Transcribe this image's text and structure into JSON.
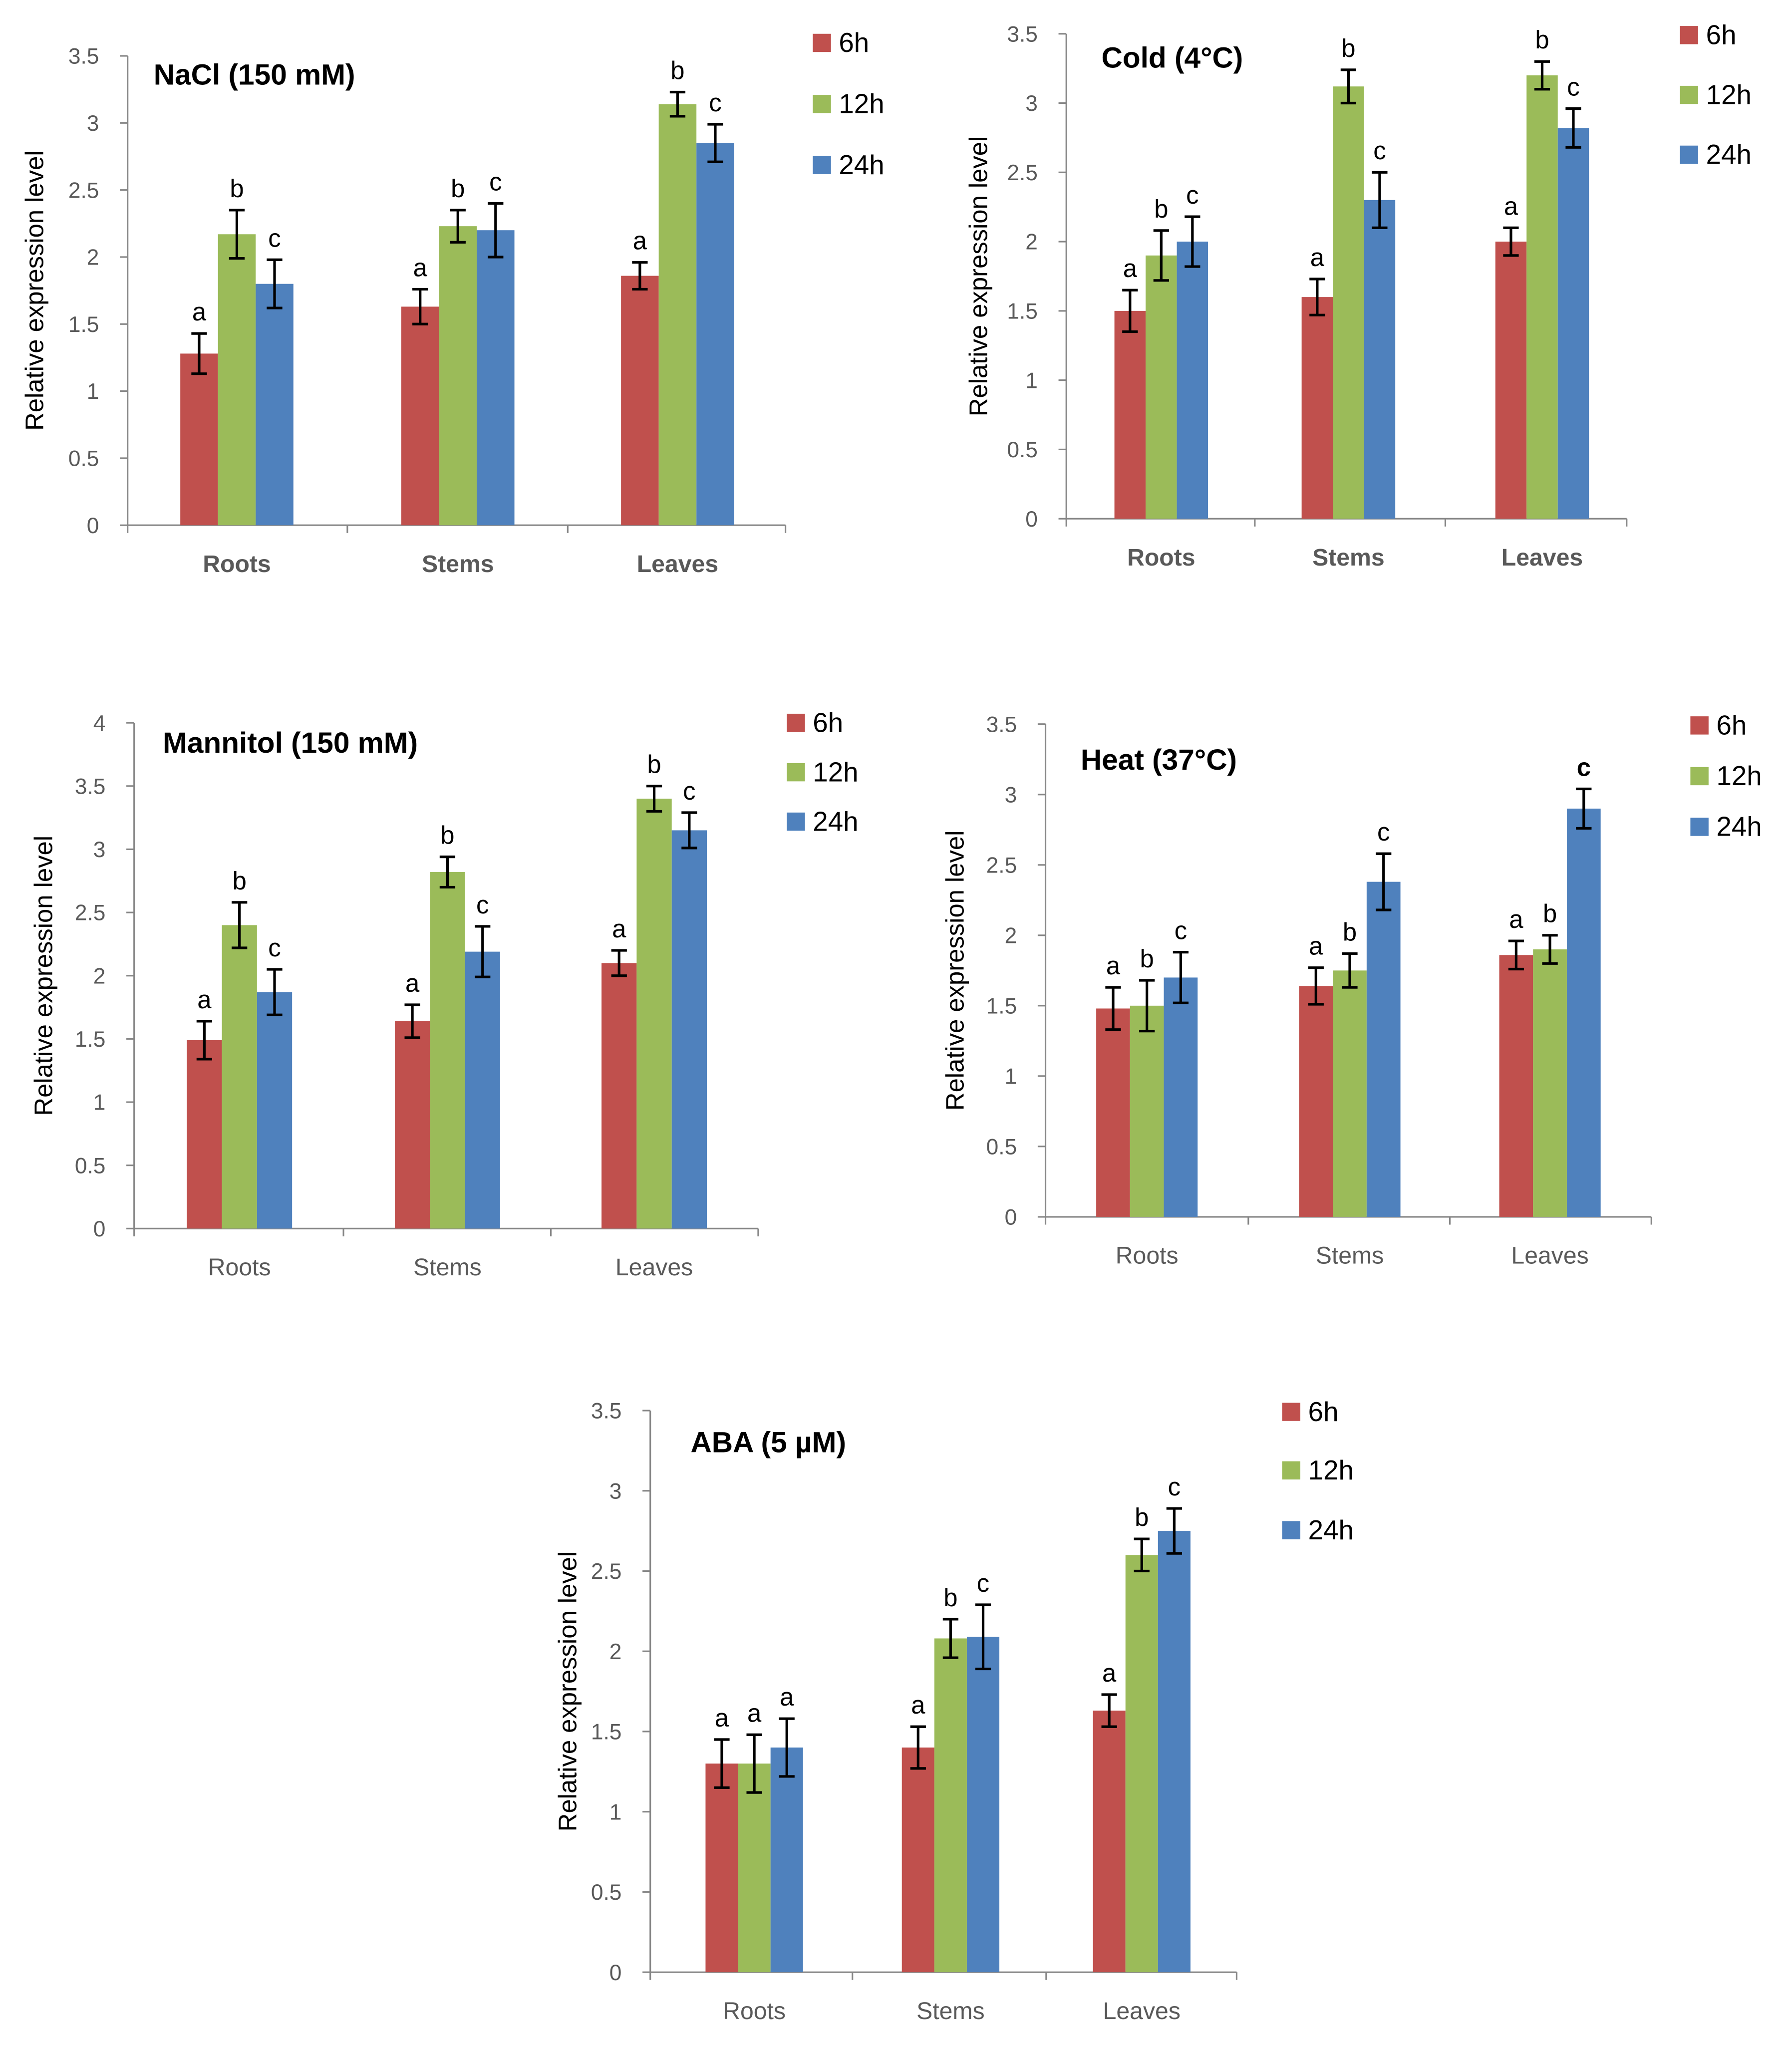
{
  "legend_series": [
    "6h",
    "12h",
    "24h"
  ],
  "series_colors": [
    "#C0504D",
    "#9BBB59",
    "#4F81BD"
  ],
  "chart_data": [
    {
      "type": "bar",
      "title": "NaCl (150 mM)",
      "ylabel": "Relative expression level",
      "xlabel": "",
      "ylim": [
        0,
        3.5
      ],
      "yticks": [
        0,
        0.5,
        1,
        1.5,
        2,
        2.5,
        3,
        3.5
      ],
      "ytick_labels": [
        "0",
        "0.5",
        "1",
        "1.5",
        "2",
        "2.5",
        "3",
        "3.5"
      ],
      "categories": [
        "Roots",
        "Stems",
        "Leaves"
      ],
      "category_bold": true,
      "series": [
        {
          "name": "6h",
          "values": [
            1.28,
            1.63,
            1.86
          ],
          "errors": [
            0.15,
            0.13,
            0.1
          ],
          "labels": [
            "a",
            "a",
            "a"
          ]
        },
        {
          "name": "12h",
          "values": [
            2.17,
            2.23,
            3.14
          ],
          "errors": [
            0.18,
            0.12,
            0.09
          ],
          "labels": [
            "b",
            "b",
            "b"
          ]
        },
        {
          "name": "24h",
          "values": [
            1.8,
            2.2,
            2.85
          ],
          "errors": [
            0.18,
            0.2,
            0.14
          ],
          "labels": [
            "c",
            "c",
            "c"
          ]
        }
      ]
    },
    {
      "type": "bar",
      "title": "Cold (4°C)",
      "ylabel": "Relative expression level",
      "xlabel": "",
      "ylim": [
        0,
        3.5
      ],
      "yticks": [
        0,
        0.5,
        1,
        1.5,
        2,
        2.5,
        3,
        3.5
      ],
      "ytick_labels": [
        "0",
        "0.5",
        "1",
        "1.5",
        "2",
        "2.5",
        "3",
        "3.5"
      ],
      "categories": [
        "Roots",
        "Stems",
        "Leaves"
      ],
      "category_bold": true,
      "series": [
        {
          "name": "6h",
          "values": [
            1.5,
            1.6,
            2.0
          ],
          "errors": [
            0.15,
            0.13,
            0.1
          ],
          "labels": [
            "a",
            "a",
            "a"
          ]
        },
        {
          "name": "12h",
          "values": [
            1.9,
            3.12,
            3.2
          ],
          "errors": [
            0.18,
            0.12,
            0.1
          ],
          "labels": [
            "b",
            "b",
            "b"
          ]
        },
        {
          "name": "24h",
          "values": [
            2.0,
            2.3,
            2.82
          ],
          "errors": [
            0.18,
            0.2,
            0.14
          ],
          "labels": [
            "c",
            "c",
            "c"
          ]
        }
      ]
    },
    {
      "type": "bar",
      "title": "Mannitol (150 mM)",
      "ylabel": "Relative expression level",
      "xlabel": "",
      "ylim": [
        0,
        4
      ],
      "yticks": [
        0,
        0.5,
        1,
        1.5,
        2,
        2.5,
        3,
        3.5,
        4
      ],
      "ytick_labels": [
        "0",
        "0.5",
        "1",
        "1.5",
        "2",
        "2.5",
        "3",
        "3.5",
        "4"
      ],
      "categories": [
        "Roots",
        "Stems",
        "Leaves"
      ],
      "category_bold": false,
      "series": [
        {
          "name": "6h",
          "values": [
            1.49,
            1.64,
            2.1
          ],
          "errors": [
            0.15,
            0.13,
            0.1
          ],
          "labels": [
            "a",
            "a",
            "a"
          ]
        },
        {
          "name": "12h",
          "values": [
            2.4,
            2.82,
            3.4
          ],
          "errors": [
            0.18,
            0.12,
            0.1
          ],
          "labels": [
            "b",
            "b",
            "b"
          ]
        },
        {
          "name": "24h",
          "values": [
            1.87,
            2.19,
            3.15
          ],
          "errors": [
            0.18,
            0.2,
            0.14
          ],
          "labels": [
            "c",
            "c",
            "c"
          ]
        }
      ]
    },
    {
      "type": "bar",
      "title": "Heat (37°C)",
      "ylabel": "Relative expression level",
      "xlabel": "",
      "ylim": [
        0,
        3.5
      ],
      "yticks": [
        0,
        0.5,
        1,
        1.5,
        2,
        2.5,
        3,
        3.5
      ],
      "ytick_labels": [
        "0",
        "0.5",
        "1",
        "1.5",
        "2",
        "2.5",
        "3",
        "3.5"
      ],
      "categories": [
        "Roots",
        "Stems",
        "Leaves"
      ],
      "category_bold": false,
      "series": [
        {
          "name": "6h",
          "values": [
            1.48,
            1.64,
            1.86
          ],
          "errors": [
            0.15,
            0.13,
            0.1
          ],
          "labels": [
            "a",
            "a",
            "a"
          ]
        },
        {
          "name": "12h",
          "values": [
            1.5,
            1.75,
            1.9
          ],
          "errors": [
            0.18,
            0.12,
            0.1
          ],
          "labels": [
            "b",
            "b",
            "b"
          ]
        },
        {
          "name": "24h",
          "values": [
            1.7,
            2.38,
            2.9
          ],
          "errors": [
            0.18,
            0.2,
            0.14
          ],
          "labels": [
            "c",
            "c",
            "c"
          ]
        }
      ]
    },
    {
      "type": "bar",
      "title": "ABA (5 µM)",
      "ylabel": "Relative expression level",
      "xlabel": "",
      "ylim": [
        0,
        3.5
      ],
      "yticks": [
        0,
        0.5,
        1,
        1.5,
        2,
        2.5,
        3,
        3.5
      ],
      "ytick_labels": [
        "0",
        "0.5",
        "1",
        "1.5",
        "2",
        "2.5",
        "3",
        "3.5"
      ],
      "categories": [
        "Roots",
        "Stems",
        "Leaves"
      ],
      "category_bold": false,
      "series": [
        {
          "name": "6h",
          "values": [
            1.3,
            1.4,
            1.63
          ],
          "errors": [
            0.15,
            0.13,
            0.1
          ],
          "labels": [
            "a",
            "a",
            "a"
          ]
        },
        {
          "name": "12h",
          "values": [
            1.3,
            2.08,
            2.6
          ],
          "errors": [
            0.18,
            0.12,
            0.1
          ],
          "labels": [
            "a",
            "b",
            "b"
          ]
        },
        {
          "name": "24h",
          "values": [
            1.4,
            2.09,
            2.75
          ],
          "errors": [
            0.18,
            0.2,
            0.14
          ],
          "labels": [
            "a",
            "c",
            "c"
          ]
        }
      ]
    }
  ]
}
